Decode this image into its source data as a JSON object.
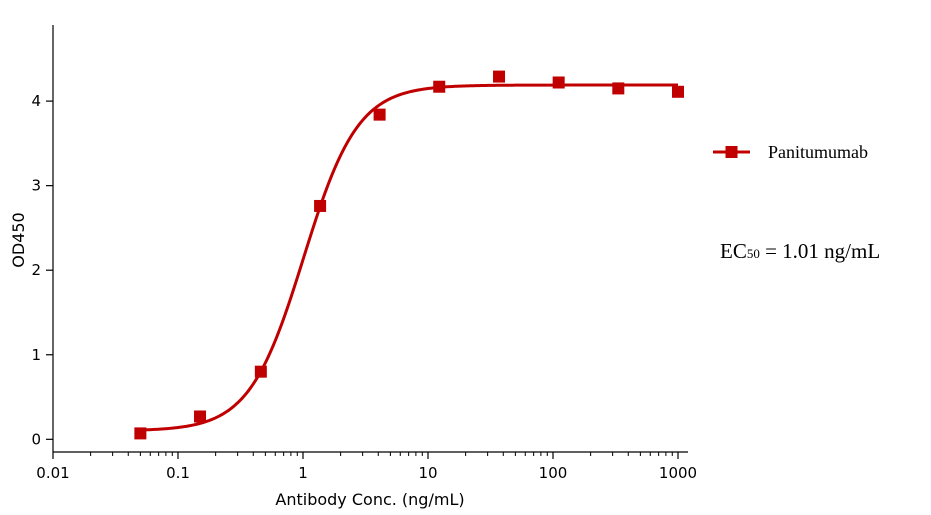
{
  "chart_data": {
    "type": "scatter",
    "xlabel": "Antibody Conc. (ng/mL)",
    "ylabel": "OD450",
    "x_scale": "log",
    "xlim": [
      0.01,
      1000
    ],
    "ylim": [
      -0.15,
      4.9
    ],
    "x_ticks": [
      0.01,
      0.1,
      1,
      10,
      100,
      1000
    ],
    "x_tick_labels": [
      "0.01",
      "0.1",
      "1",
      "10",
      "100",
      "1000"
    ],
    "y_ticks": [
      0,
      1,
      2,
      3,
      4
    ],
    "y_tick_labels": [
      "0",
      "1",
      "2",
      "3",
      "4"
    ],
    "grid": false,
    "legend_position": "right",
    "series": [
      {
        "name": "Panitumumab",
        "color": "#c00000",
        "marker": "square",
        "x": [
          0.05,
          0.15,
          0.46,
          1.37,
          4.1,
          12.3,
          37,
          111,
          333,
          1000
        ],
        "y": [
          0.07,
          0.27,
          0.8,
          2.76,
          3.84,
          4.17,
          4.29,
          4.22,
          4.15,
          4.11
        ],
        "fit": {
          "model": "4PL",
          "bottom": 0.1,
          "top": 4.19,
          "ec50": 1.01,
          "hill": 2.0
        }
      }
    ],
    "annotations": [
      {
        "prefix": "EC",
        "sub": "50",
        "suffix": " = 1.01 ng/mL"
      }
    ]
  }
}
